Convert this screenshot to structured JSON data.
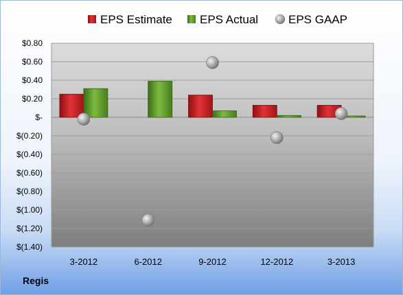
{
  "company": "Regis",
  "chart_data": {
    "type": "bar",
    "categories": [
      "3-2012",
      "6-2012",
      "9-2012",
      "12-2012",
      "3-2013"
    ],
    "series": [
      {
        "name": "EPS Estimate",
        "kind": "bar",
        "color": "#cc1f24",
        "values": [
          0.25,
          null,
          0.24,
          0.13,
          0.13
        ]
      },
      {
        "name": "EPS Actual",
        "kind": "bar",
        "color": "#5c9c2a",
        "values": [
          0.31,
          0.39,
          0.07,
          0.02,
          0.0
        ]
      },
      {
        "name": "EPS GAAP",
        "kind": "scatter",
        "color": "#a0a0a0",
        "values": [
          -0.02,
          -1.11,
          0.59,
          -0.22,
          0.04
        ]
      }
    ],
    "ylim": [
      -1.4,
      0.8
    ],
    "yticks": [
      0.8,
      0.6,
      0.4,
      0.2,
      0,
      -0.2,
      -0.4,
      -0.6,
      -0.8,
      -1.0,
      -1.2,
      -1.4
    ],
    "ytick_labels": [
      "$0.80",
      "$0.60",
      "$0.40",
      "$0.20",
      "$-",
      "$(0.20)",
      "$(0.40)",
      "$(0.60)",
      "$(0.80)",
      "$(1.00)",
      "$(1.20)",
      "$(1.40)"
    ],
    "grid": true,
    "legend": "top"
  }
}
